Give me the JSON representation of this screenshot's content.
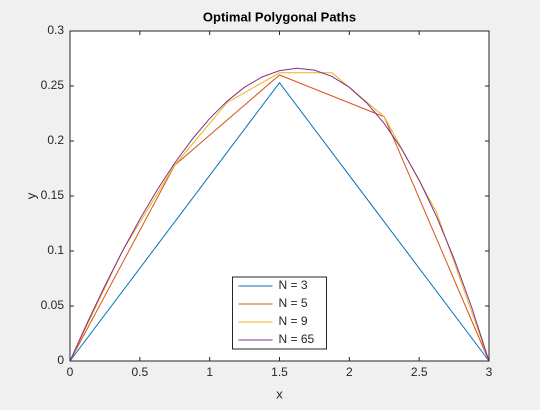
{
  "chart_data": {
    "type": "line",
    "title": "Optimal Polygonal Paths",
    "xlabel": "x",
    "ylabel": "y",
    "xlim": [
      0,
      3
    ],
    "ylim": [
      0,
      0.3
    ],
    "xticks": [
      0,
      0.5,
      1,
      1.5,
      2,
      2.5,
      3
    ],
    "yticks": [
      0,
      0.05,
      0.1,
      0.15,
      0.2,
      0.25,
      0.3
    ],
    "grid": false,
    "legend": "bottom",
    "series": [
      {
        "name": "N = 3",
        "color": "#0072bd",
        "x": [
          0,
          1.5,
          3
        ],
        "values": [
          0,
          0.253,
          0
        ]
      },
      {
        "name": "N = 5",
        "color": "#d95319",
        "x": [
          0,
          0.75,
          1.5,
          2.25,
          3
        ],
        "values": [
          0,
          0.178,
          0.26,
          0.222,
          0
        ]
      },
      {
        "name": "N = 9",
        "color": "#edb120",
        "x": [
          0,
          0.375,
          0.75,
          1.125,
          1.5,
          1.875,
          2.25,
          2.625,
          3
        ],
        "values": [
          0,
          0.1,
          0.178,
          0.235,
          0.262,
          0.262,
          0.222,
          0.135,
          0
        ]
      },
      {
        "name": "N = 65",
        "color": "#7e2f8e",
        "x": [
          0,
          0.125,
          0.25,
          0.375,
          0.5,
          0.625,
          0.75,
          0.875,
          1,
          1.125,
          1.25,
          1.375,
          1.5,
          1.625,
          1.75,
          1.875,
          2,
          2.125,
          2.25,
          2.375,
          2.5,
          2.625,
          2.75,
          2.875,
          3
        ],
        "values": [
          0,
          0.0351,
          0.0684,
          0.0997,
          0.1289,
          0.1557,
          0.18,
          0.2016,
          0.2204,
          0.2362,
          0.2489,
          0.2582,
          0.264,
          0.2661,
          0.2644,
          0.2587,
          0.2488,
          0.2346,
          0.2159,
          0.1926,
          0.1644,
          0.1312,
          0.0929,
          0.0492,
          0
        ]
      }
    ]
  }
}
